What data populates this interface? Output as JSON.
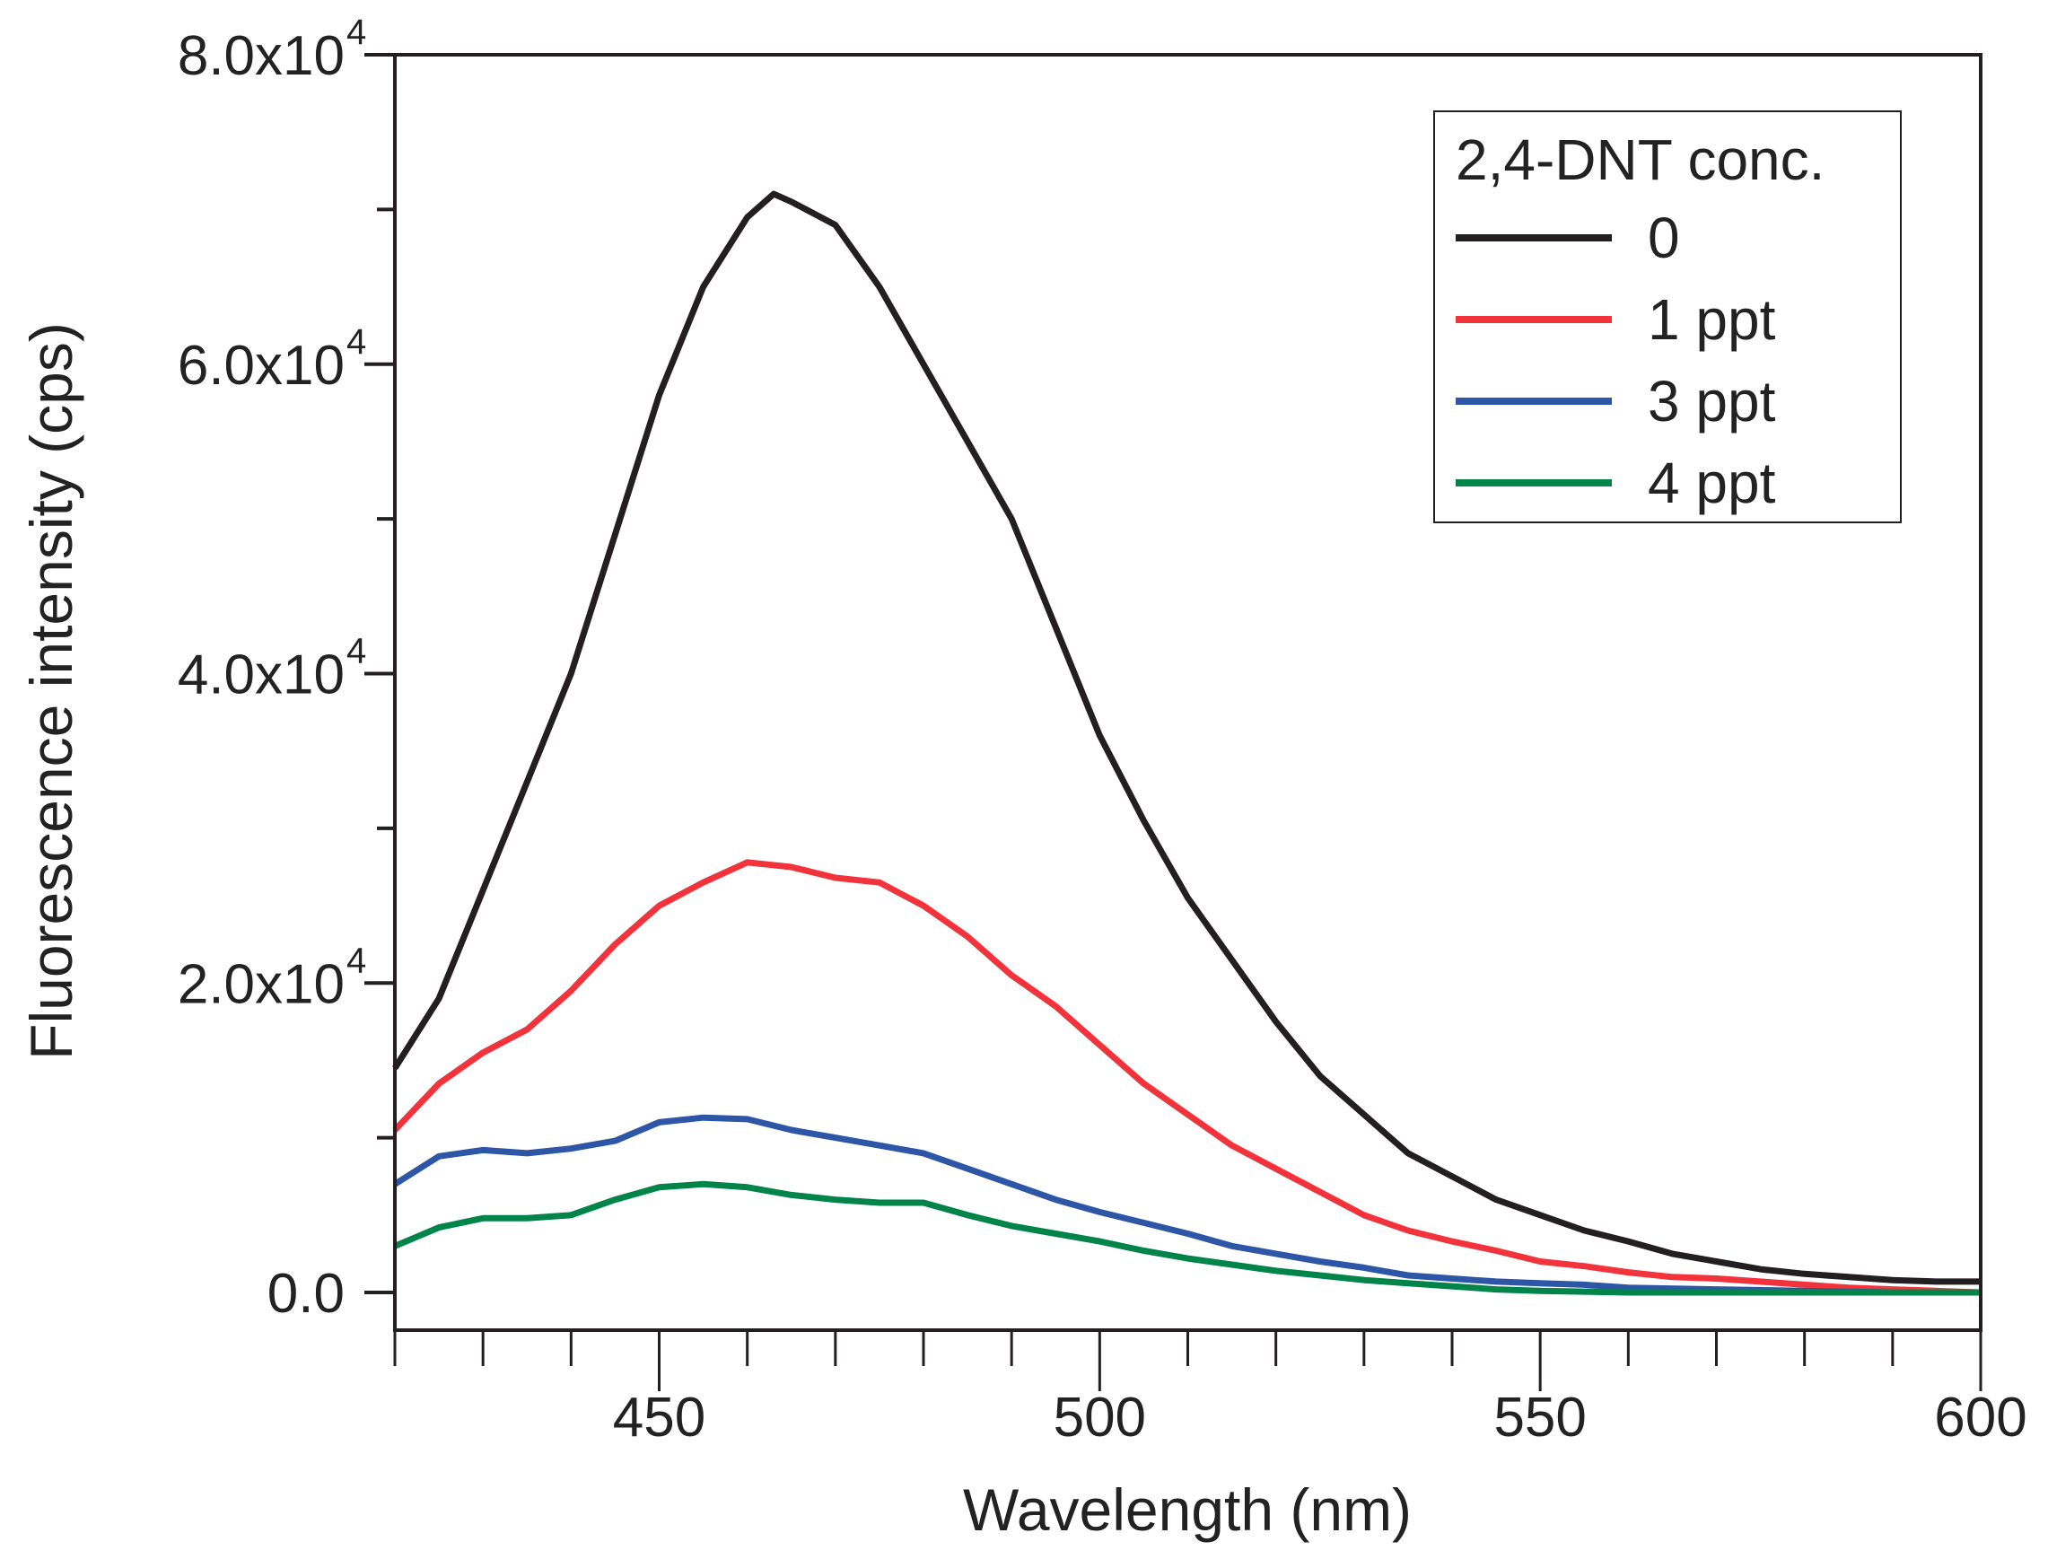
{
  "chart_data": {
    "type": "line",
    "title": "",
    "xlabel": "Wavelength (nm)",
    "ylabel": "Fluorescence intensity (cps)",
    "xlim": [
      420,
      600
    ],
    "ylim": [
      -2500,
      80000
    ],
    "x_ticks": [
      450,
      500,
      550,
      600
    ],
    "x_tick_labels": [
      "450",
      "500",
      "550",
      "600"
    ],
    "y_ticks": [
      0,
      20000,
      40000,
      60000,
      80000
    ],
    "y_tick_labels": [
      {
        "mantissa": "0.0",
        "exp": ""
      },
      {
        "mantissa": "2.0x10",
        "exp": "4"
      },
      {
        "mantissa": "4.0x10",
        "exp": "4"
      },
      {
        "mantissa": "6.0x10",
        "exp": "4"
      },
      {
        "mantissa": "8.0x10",
        "exp": "4"
      }
    ],
    "grid": false,
    "legend": {
      "title": "2,4-DNT conc.",
      "placement": "top-right"
    },
    "series": [
      {
        "name": "0",
        "color": "#231f20",
        "x": [
          420,
          425,
          430,
          435,
          440,
          445,
          450,
          455,
          460,
          463,
          465,
          470,
          475,
          480,
          485,
          490,
          495,
          500,
          505,
          510,
          515,
          520,
          525,
          530,
          535,
          540,
          545,
          550,
          555,
          560,
          565,
          570,
          575,
          580,
          585,
          590,
          595,
          600
        ],
        "y": [
          14500,
          19000,
          26000,
          33000,
          40000,
          49000,
          58000,
          65000,
          69500,
          71000,
          70500,
          69000,
          65000,
          60000,
          55000,
          50000,
          43000,
          36000,
          30500,
          25500,
          21500,
          17500,
          14000,
          11500,
          9000,
          7500,
          6000,
          5000,
          4000,
          3300,
          2500,
          2000,
          1500,
          1200,
          1000,
          800,
          700,
          700
        ]
      },
      {
        "name": "1 ppt",
        "color": "#f2333b",
        "x": [
          420,
          425,
          430,
          435,
          440,
          445,
          450,
          455,
          460,
          465,
          470,
          475,
          480,
          485,
          490,
          495,
          500,
          505,
          510,
          515,
          520,
          525,
          530,
          535,
          540,
          545,
          550,
          555,
          560,
          565,
          570,
          575,
          580,
          585,
          590,
          595,
          600
        ],
        "y": [
          10500,
          13500,
          15500,
          17000,
          19500,
          22500,
          25000,
          26500,
          27800,
          27500,
          26800,
          26500,
          25000,
          23000,
          20500,
          18500,
          16000,
          13500,
          11500,
          9500,
          8000,
          6500,
          5000,
          4000,
          3300,
          2700,
          2000,
          1700,
          1300,
          1000,
          900,
          700,
          500,
          300,
          200,
          100,
          0
        ]
      },
      {
        "name": "3 ppt",
        "color": "#2e56a6",
        "x": [
          420,
          425,
          430,
          435,
          440,
          445,
          450,
          455,
          460,
          465,
          470,
          475,
          480,
          485,
          490,
          495,
          500,
          505,
          510,
          515,
          520,
          525,
          530,
          535,
          540,
          545,
          550,
          555,
          560,
          570,
          580,
          590,
          600
        ],
        "y": [
          7000,
          8800,
          9200,
          9000,
          9300,
          9800,
          11000,
          11300,
          11200,
          10500,
          10000,
          9500,
          9000,
          8000,
          7000,
          6000,
          5200,
          4500,
          3800,
          3000,
          2500,
          2000,
          1600,
          1100,
          900,
          700,
          600,
          500,
          300,
          200,
          100,
          0,
          0
        ]
      },
      {
        "name": "4 ppt",
        "color": "#00844a",
        "x": [
          420,
          425,
          430,
          435,
          440,
          445,
          450,
          455,
          460,
          465,
          470,
          475,
          480,
          485,
          490,
          495,
          500,
          505,
          510,
          515,
          520,
          525,
          530,
          535,
          540,
          545,
          550,
          560,
          600
        ],
        "y": [
          3000,
          4200,
          4800,
          4800,
          5000,
          6000,
          6800,
          7000,
          6800,
          6300,
          6000,
          5800,
          5800,
          5000,
          4300,
          3800,
          3300,
          2700,
          2200,
          1800,
          1400,
          1100,
          800,
          600,
          400,
          200,
          100,
          0,
          0
        ]
      }
    ]
  }
}
